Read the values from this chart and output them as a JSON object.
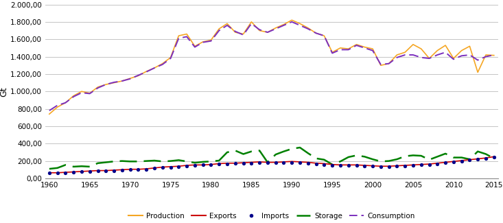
{
  "years": [
    1960,
    1961,
    1962,
    1963,
    1964,
    1965,
    1966,
    1967,
    1968,
    1969,
    1970,
    1971,
    1972,
    1973,
    1974,
    1975,
    1976,
    1977,
    1978,
    1979,
    1980,
    1981,
    1982,
    1983,
    1984,
    1985,
    1986,
    1987,
    1988,
    1989,
    1990,
    1991,
    1992,
    1993,
    1994,
    1995,
    1996,
    1997,
    1998,
    1999,
    2000,
    2001,
    2002,
    2003,
    2004,
    2005,
    2006,
    2007,
    2008,
    2009,
    2010,
    2011,
    2012,
    2013,
    2014,
    2015
  ],
  "production": [
    740,
    820,
    870,
    950,
    1000,
    980,
    1050,
    1080,
    1100,
    1120,
    1150,
    1180,
    1230,
    1270,
    1320,
    1390,
    1640,
    1660,
    1520,
    1570,
    1590,
    1720,
    1780,
    1680,
    1660,
    1800,
    1700,
    1680,
    1730,
    1770,
    1820,
    1780,
    1730,
    1670,
    1640,
    1450,
    1500,
    1490,
    1540,
    1510,
    1490,
    1300,
    1320,
    1420,
    1450,
    1540,
    1490,
    1380,
    1470,
    1530,
    1380,
    1470,
    1520,
    1220,
    1420,
    1415
  ],
  "exports": [
    65,
    65,
    70,
    75,
    80,
    85,
    90,
    90,
    95,
    100,
    105,
    105,
    110,
    120,
    130,
    135,
    140,
    150,
    155,
    155,
    160,
    170,
    175,
    175,
    180,
    185,
    190,
    185,
    185,
    190,
    195,
    190,
    185,
    175,
    170,
    160,
    155,
    155,
    155,
    150,
    145,
    140,
    140,
    145,
    150,
    155,
    160,
    165,
    175,
    185,
    195,
    205,
    215,
    225,
    235,
    250
  ],
  "imports": [
    60,
    60,
    65,
    70,
    75,
    80,
    85,
    90,
    90,
    95,
    100,
    100,
    105,
    115,
    125,
    130,
    135,
    145,
    150,
    155,
    158,
    162,
    168,
    170,
    172,
    175,
    178,
    180,
    178,
    180,
    182,
    180,
    175,
    165,
    158,
    152,
    148,
    148,
    148,
    145,
    140,
    138,
    136,
    140,
    145,
    150,
    155,
    160,
    168,
    178,
    188,
    198,
    210,
    220,
    230,
    245
  ],
  "storage": [
    110,
    120,
    155,
    135,
    140,
    135,
    175,
    185,
    195,
    200,
    195,
    195,
    200,
    205,
    195,
    200,
    210,
    195,
    180,
    190,
    195,
    205,
    300,
    320,
    280,
    310,
    320,
    185,
    275,
    310,
    340,
    355,
    290,
    230,
    215,
    160,
    195,
    245,
    265,
    250,
    220,
    195,
    200,
    220,
    255,
    265,
    260,
    215,
    250,
    285,
    240,
    240,
    220,
    310,
    280,
    230
  ],
  "consumption": [
    780,
    840,
    870,
    940,
    985,
    975,
    1040,
    1080,
    1105,
    1120,
    1145,
    1185,
    1225,
    1270,
    1310,
    1380,
    1610,
    1630,
    1510,
    1565,
    1580,
    1700,
    1760,
    1690,
    1650,
    1780,
    1710,
    1680,
    1720,
    1760,
    1800,
    1760,
    1720,
    1670,
    1640,
    1440,
    1480,
    1480,
    1530,
    1500,
    1470,
    1310,
    1320,
    1390,
    1420,
    1420,
    1390,
    1380,
    1420,
    1450,
    1370,
    1410,
    1420,
    1360,
    1400,
    1420
  ],
  "production_color": "#F5A623",
  "exports_color": "#CC0000",
  "imports_color": "#00008B",
  "storage_color": "#008000",
  "consumption_color": "#7B2FBE",
  "ylabel": "Gt",
  "ylim": [
    0,
    2000
  ],
  "xlim_min": 1959.5,
  "xlim_max": 2015.5,
  "yticks": [
    0,
    200,
    400,
    600,
    800,
    1000,
    1200,
    1400,
    1600,
    1800,
    2000
  ],
  "xticks": [
    1960,
    1965,
    1970,
    1975,
    1980,
    1985,
    1990,
    1995,
    2000,
    2005,
    2010,
    2015
  ],
  "grid_color": "#BBBBBB",
  "spine_color": "#888888"
}
